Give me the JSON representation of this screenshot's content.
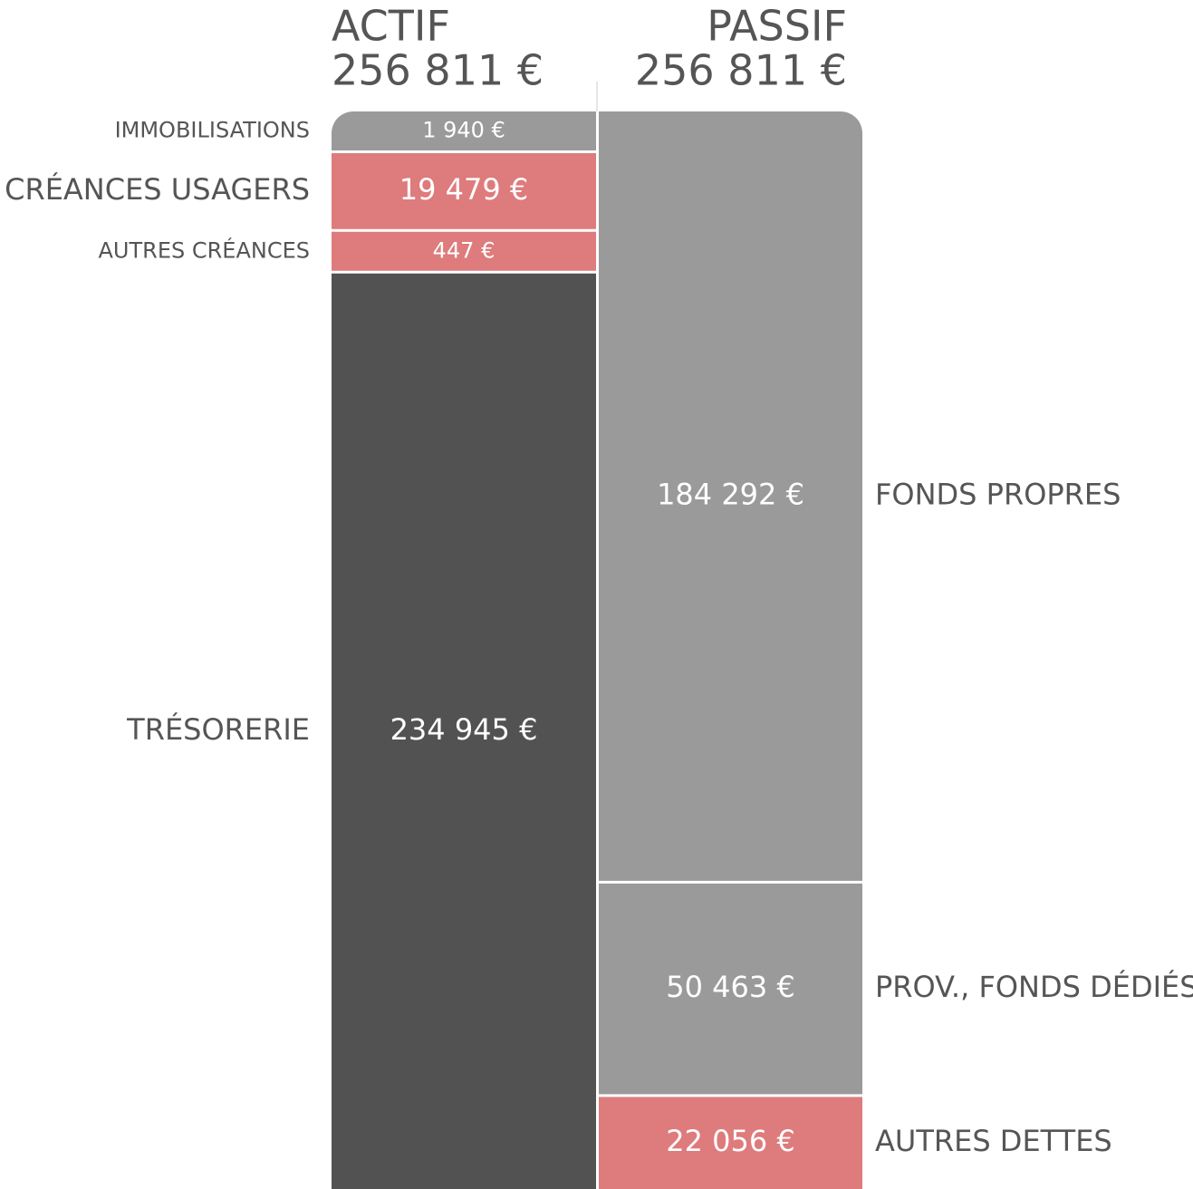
{
  "chart_data": {
    "type": "balance",
    "columns": [
      {
        "title": "ACTIF",
        "total": 256811,
        "total_label": "256 811 €",
        "items": [
          {
            "name": "IMMOBILISATIONS",
            "value": 1940,
            "value_label": "1 940 €",
            "color": "#9a9a9a"
          },
          {
            "name": "CRÉANCES USAGERS",
            "value": 19479,
            "value_label": "19 479 €",
            "color": "#de7b7c"
          },
          {
            "name": "AUTRES CRÉANCES",
            "value": 447,
            "value_label": "447 €",
            "color": "#de7b7c"
          },
          {
            "name": "TRÉSORERIE",
            "value": 234945,
            "value_label": "234 945 €",
            "color": "#525252"
          }
        ]
      },
      {
        "title": "PASSIF",
        "total": 256811,
        "total_label": "256 811 €",
        "items": [
          {
            "name": "FONDS PROPRES",
            "value": 184292,
            "value_label": "184 292 €",
            "color": "#9a9a9a"
          },
          {
            "name": "PROV., FONDS DÉDIÉS",
            "value": 50463,
            "value_label": "50 463 €",
            "color": "#9a9a9a"
          },
          {
            "name": "AUTRES DETTES",
            "value": 22056,
            "value_label": "22 056 €",
            "color": "#de7b7c"
          }
        ]
      }
    ]
  }
}
